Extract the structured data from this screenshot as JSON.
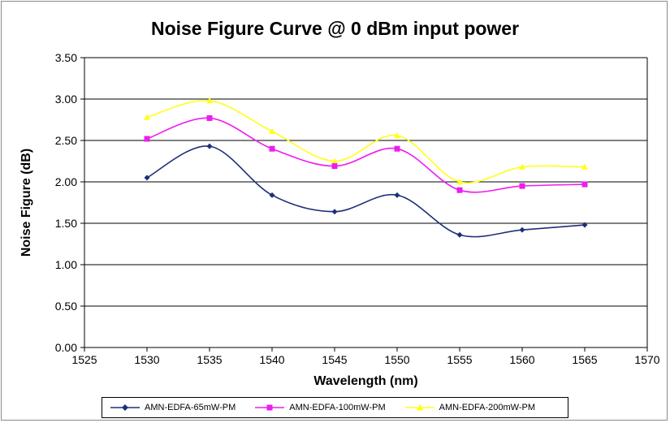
{
  "chart_data": {
    "type": "line",
    "title": "Noise Figure Curve @ 0 dBm input power",
    "xlabel": "Wavelength (nm)",
    "ylabel": "Noise Figure (dB)",
    "xlim": [
      1525,
      1570
    ],
    "ylim": [
      0,
      3.5
    ],
    "x_ticks": [
      "1525",
      "1530",
      "1535",
      "1540",
      "1545",
      "1550",
      "1555",
      "1560",
      "1565",
      "1570"
    ],
    "y_ticks": [
      "0.00",
      "0.50",
      "1.00",
      "1.50",
      "2.00",
      "2.50",
      "3.00",
      "3.50"
    ],
    "grid": "horizontal",
    "legend_position": "bottom",
    "x": [
      1530,
      1535,
      1540,
      1545,
      1550,
      1555,
      1560,
      1565
    ],
    "series": [
      {
        "name": "AMN-EDFA-65mW-PM",
        "values": [
          2.05,
          2.43,
          1.84,
          1.64,
          1.84,
          1.36,
          1.42,
          1.48
        ],
        "color": "#1f2f78",
        "marker": "diamond"
      },
      {
        "name": "AMN-EDFA-100mW-PM",
        "values": [
          2.52,
          2.77,
          2.4,
          2.19,
          2.4,
          1.9,
          1.95,
          1.97
        ],
        "color": "#ee1cee",
        "marker": "square"
      },
      {
        "name": "AMN-EDFA-200mW-PM",
        "values": [
          2.78,
          2.98,
          2.61,
          2.25,
          2.56,
          2.0,
          2.18,
          2.18
        ],
        "color": "#ffff1a",
        "marker": "triangle"
      }
    ]
  }
}
